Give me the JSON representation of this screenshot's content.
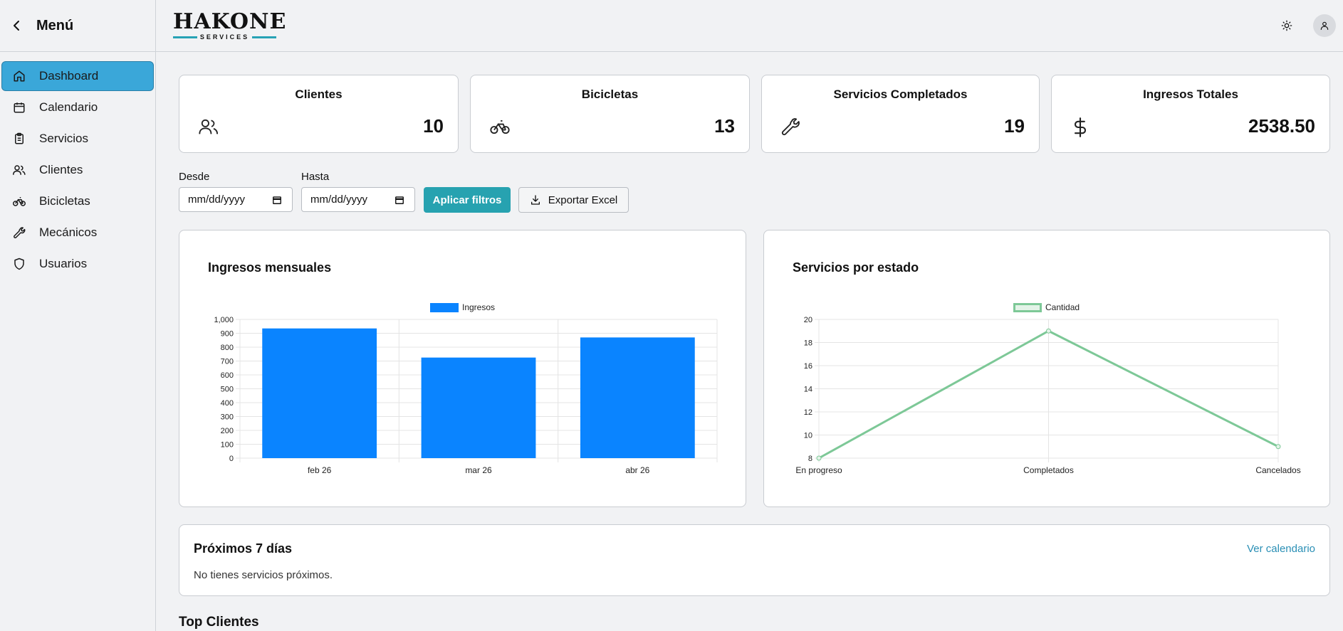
{
  "sidebar": {
    "title": "Menú",
    "items": [
      {
        "label": "Dashboard",
        "icon": "home-icon",
        "active": true
      },
      {
        "label": "Calendario",
        "icon": "calendar-icon"
      },
      {
        "label": "Servicios",
        "icon": "clipboard-icon"
      },
      {
        "label": "Clientes",
        "icon": "users-icon"
      },
      {
        "label": "Bicicletas",
        "icon": "bike-icon"
      },
      {
        "label": "Mecánicos",
        "icon": "wrench-icon"
      },
      {
        "label": "Usuarios",
        "icon": "shield-icon"
      }
    ]
  },
  "header": {
    "logo_main": "HAKONE",
    "logo_sub": "SERVICES",
    "theme_icon": "sun-icon",
    "avatar_icon": "user-icon"
  },
  "stats": [
    {
      "title": "Clientes",
      "value": "10",
      "icon": "users-icon"
    },
    {
      "title": "Bicicletas",
      "value": "13",
      "icon": "bike-icon"
    },
    {
      "title": "Servicios Completados",
      "value": "19",
      "icon": "wrench-icon"
    },
    {
      "title": "Ingresos Totales",
      "value": "2538.50",
      "icon": "dollar-icon"
    }
  ],
  "filters": {
    "from_label": "Desde",
    "to_label": "Hasta",
    "from_placeholder": "mm/dd/yyyy",
    "to_placeholder": "mm/dd/yyyy",
    "apply_label": "Aplicar filtros",
    "export_label": "Exportar Excel"
  },
  "colors": {
    "accent": "#27a2b0",
    "nav_active": "#3aa7d9",
    "bar": "#0a84ff",
    "line": "#7dc897"
  },
  "chart_data": [
    {
      "type": "bar",
      "title": "Ingresos mensuales",
      "categories": [
        "feb 26",
        "mar 26",
        "abr 26"
      ],
      "series": [
        {
          "name": "Ingresos",
          "values": [
            935,
            725,
            870
          ]
        }
      ],
      "ylim": [
        0,
        1000
      ],
      "yticks": [
        "0",
        "100",
        "200",
        "300",
        "400",
        "500",
        "600",
        "700",
        "800",
        "900",
        "1,000"
      ],
      "grid": true,
      "legend": "top-center"
    },
    {
      "type": "line",
      "title": "Servicios por estado",
      "categories": [
        "En progreso",
        "Completados",
        "Cancelados"
      ],
      "series": [
        {
          "name": "Cantidad",
          "values": [
            8,
            19,
            9
          ]
        }
      ],
      "ylim": [
        8,
        20
      ],
      "yticks": [
        "8",
        "10",
        "12",
        "14",
        "16",
        "18",
        "20"
      ],
      "grid": true,
      "legend": "top-center"
    }
  ],
  "upcoming": {
    "title": "Próximos 7 días",
    "link": "Ver calendario",
    "empty": "No tienes servicios próximos."
  },
  "top_clients": {
    "title": "Top Clientes"
  }
}
